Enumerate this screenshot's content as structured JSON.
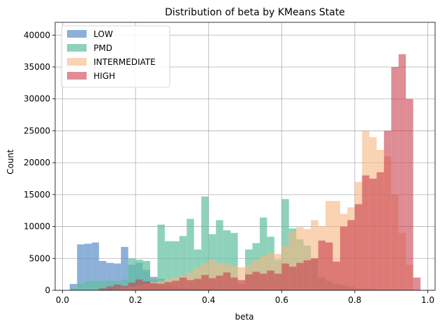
{
  "chart_data": {
    "type": "bar",
    "title": "Distribution of beta by KMeans State",
    "xlabel": "beta",
    "ylabel": "Count",
    "xlim": [
      -0.02,
      1.02
    ],
    "ylim": [
      0,
      42000
    ],
    "xticks": [
      0.0,
      0.2,
      0.4,
      0.6,
      0.8,
      1.0
    ],
    "xtick_labels": [
      "0.0",
      "0.2",
      "0.4",
      "0.6",
      "0.8",
      "1.0"
    ],
    "yticks": [
      0,
      5000,
      10000,
      15000,
      20000,
      25000,
      30000,
      35000,
      40000
    ],
    "ytick_labels": [
      "0",
      "5000",
      "10000",
      "15000",
      "20000",
      "25000",
      "30000",
      "35000",
      "40000"
    ],
    "grid": true,
    "legend_position": "top-left",
    "bin_width": 0.02,
    "series": [
      {
        "name": "LOW",
        "color": "#5b8ec6",
        "opacity": 0.7,
        "x": [
          0.01,
          0.03,
          0.05,
          0.07,
          0.09,
          0.11,
          0.13,
          0.15,
          0.17,
          0.19,
          0.21,
          0.23,
          0.25,
          0.27,
          0.29,
          0.31,
          0.33,
          0.35,
          0.37,
          0.39,
          0.41,
          0.43,
          0.45,
          0.47,
          0.49,
          0.51,
          0.53,
          0.55
        ],
        "values": [
          0,
          1000,
          7200,
          7300,
          7500,
          4600,
          4300,
          4200,
          6800,
          4000,
          4300,
          3200,
          2100,
          1800,
          800,
          600,
          400,
          300,
          300,
          200,
          200,
          100,
          100,
          100,
          100,
          100,
          0,
          0
        ]
      },
      {
        "name": "PMD",
        "color": "#5fbf9f",
        "opacity": 0.7,
        "x": [
          0.01,
          0.03,
          0.05,
          0.07,
          0.09,
          0.11,
          0.13,
          0.15,
          0.17,
          0.19,
          0.21,
          0.23,
          0.25,
          0.27,
          0.29,
          0.31,
          0.33,
          0.35,
          0.37,
          0.39,
          0.41,
          0.43,
          0.45,
          0.47,
          0.49,
          0.51,
          0.53,
          0.55,
          0.57,
          0.59,
          0.61,
          0.63,
          0.65,
          0.67,
          0.69,
          0.71,
          0.73,
          0.75,
          0.77,
          0.79,
          0.81,
          0.83,
          0.85,
          0.87,
          0.89,
          0.91,
          0.93,
          0.95,
          0.97
        ],
        "values": [
          0,
          300,
          1000,
          1400,
          1500,
          1400,
          1500,
          1500,
          1700,
          5000,
          4800,
          4600,
          1700,
          10300,
          7700,
          7700,
          8500,
          11200,
          6400,
          14700,
          8800,
          11000,
          9400,
          9000,
          1000,
          6400,
          7400,
          11400,
          8400,
          4800,
          14300,
          9700,
          8000,
          7000,
          5000,
          2000,
          1500,
          1000,
          800,
          500,
          300,
          200,
          200,
          100,
          100,
          100,
          0,
          0,
          0
        ]
      },
      {
        "name": "INTERMEDIATE",
        "color": "#f5b57f",
        "opacity": 0.6,
        "x": [
          0.15,
          0.17,
          0.19,
          0.21,
          0.23,
          0.25,
          0.27,
          0.29,
          0.31,
          0.33,
          0.35,
          0.37,
          0.39,
          0.41,
          0.43,
          0.45,
          0.47,
          0.49,
          0.51,
          0.53,
          0.55,
          0.57,
          0.59,
          0.61,
          0.63,
          0.65,
          0.67,
          0.69,
          0.71,
          0.73,
          0.75,
          0.77,
          0.79,
          0.81,
          0.83,
          0.85,
          0.87,
          0.89,
          0.91,
          0.93,
          0.95
        ],
        "values": [
          200,
          400,
          600,
          800,
          1000,
          1300,
          1500,
          1800,
          2100,
          2300,
          2800,
          3500,
          4200,
          4800,
          4300,
          4100,
          3800,
          3600,
          4000,
          4700,
          5500,
          5900,
          5700,
          7000,
          9200,
          9900,
          9600,
          11000,
          10000,
          14000,
          14000,
          12000,
          13000,
          17000,
          25000,
          24000,
          22000,
          21000,
          15000,
          9000,
          4000
        ]
      },
      {
        "name": "HIGH",
        "color": "#c9404f",
        "opacity": 0.6,
        "x": [
          0.11,
          0.13,
          0.15,
          0.17,
          0.19,
          0.21,
          0.23,
          0.25,
          0.27,
          0.29,
          0.31,
          0.33,
          0.35,
          0.37,
          0.39,
          0.41,
          0.43,
          0.45,
          0.47,
          0.49,
          0.51,
          0.53,
          0.55,
          0.57,
          0.59,
          0.61,
          0.63,
          0.65,
          0.67,
          0.69,
          0.71,
          0.73,
          0.75,
          0.77,
          0.79,
          0.81,
          0.83,
          0.85,
          0.87,
          0.89,
          0.91,
          0.93,
          0.95,
          0.97
        ],
        "values": [
          300,
          600,
          900,
          700,
          1200,
          1700,
          1400,
          1100,
          1000,
          1300,
          1500,
          2000,
          1600,
          1800,
          2400,
          1900,
          2300,
          2800,
          2000,
          1600,
          2500,
          2900,
          2600,
          3100,
          2600,
          4200,
          3700,
          4300,
          4700,
          5000,
          7800,
          7500,
          4500,
          10000,
          11000,
          13500,
          18000,
          17500,
          18500,
          25000,
          35000,
          37000,
          30000,
          2000
        ]
      }
    ]
  }
}
